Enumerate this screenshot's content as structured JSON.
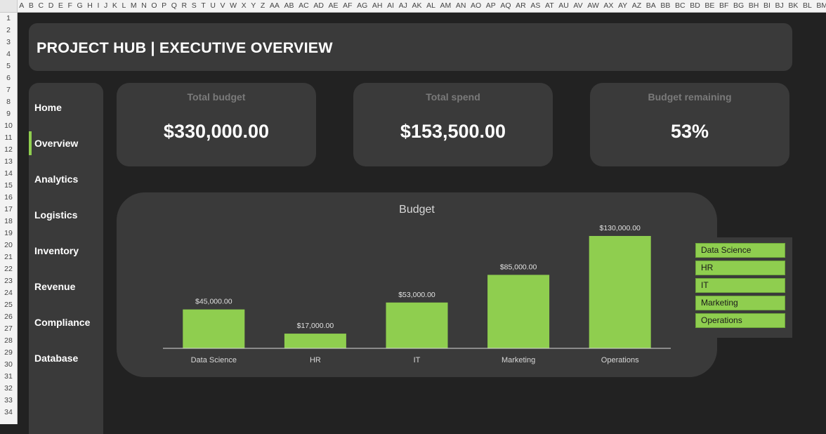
{
  "sheet": {
    "columns": [
      "A",
      "B",
      "C",
      "D",
      "E",
      "F",
      "G",
      "H",
      "I",
      "J",
      "K",
      "L",
      "M",
      "N",
      "O",
      "P",
      "Q",
      "R",
      "S",
      "T",
      "U",
      "V",
      "W",
      "X",
      "Y",
      "Z",
      "AA",
      "AB",
      "AC",
      "AD",
      "AE",
      "AF",
      "AG",
      "AH",
      "AI",
      "AJ",
      "AK",
      "AL",
      "AM",
      "AN",
      "AO",
      "AP",
      "AQ",
      "AR",
      "AS",
      "AT",
      "AU",
      "AV",
      "AW",
      "AX",
      "AY",
      "AZ",
      "BA",
      "BB",
      "BC",
      "BD",
      "BE",
      "BF",
      "BG",
      "BH",
      "BI",
      "BJ",
      "BK",
      "BL",
      "BM"
    ],
    "rows": [
      "1",
      "2",
      "3",
      "4",
      "5",
      "6",
      "7",
      "8",
      "9",
      "10",
      "11",
      "12",
      "13",
      "14",
      "15",
      "16",
      "17",
      "18",
      "19",
      "20",
      "21",
      "22",
      "23",
      "24",
      "25",
      "26",
      "27",
      "28",
      "29",
      "30",
      "31",
      "32",
      "33",
      "34"
    ]
  },
  "header": {
    "title": "PROJECT HUB | EXECUTIVE OVERVIEW"
  },
  "nav": {
    "items": [
      "Home",
      "Overview",
      "Analytics",
      "Logistics",
      "Inventory",
      "Revenue",
      "Compliance",
      "Database"
    ],
    "active": "Overview"
  },
  "kpis": [
    {
      "label": "Total budget",
      "value": "$330,000.00"
    },
    {
      "label": "Total spend",
      "value": "$153,500.00"
    },
    {
      "label": "Budget remaining",
      "value": "53%"
    }
  ],
  "colors": {
    "accent": "#8fce4f",
    "panel": "#3a3a3a",
    "background": "#222222"
  },
  "chart_data": {
    "type": "bar",
    "title": "Budget",
    "categories": [
      "Data Science",
      "HR",
      "IT",
      "Marketing",
      "Operations"
    ],
    "values": [
      45000,
      17000,
      53000,
      85000,
      130000
    ],
    "data_labels": [
      "$45,000.00",
      "$17,000.00",
      "$53,000.00",
      "$85,000.00",
      "$130,000.00"
    ],
    "ylim": [
      0,
      130000
    ],
    "grid": false,
    "legend": {
      "position": "right",
      "entries": [
        "Data Science",
        "HR",
        "IT",
        "Marketing",
        "Operations"
      ]
    },
    "color": "#8fce4f"
  }
}
